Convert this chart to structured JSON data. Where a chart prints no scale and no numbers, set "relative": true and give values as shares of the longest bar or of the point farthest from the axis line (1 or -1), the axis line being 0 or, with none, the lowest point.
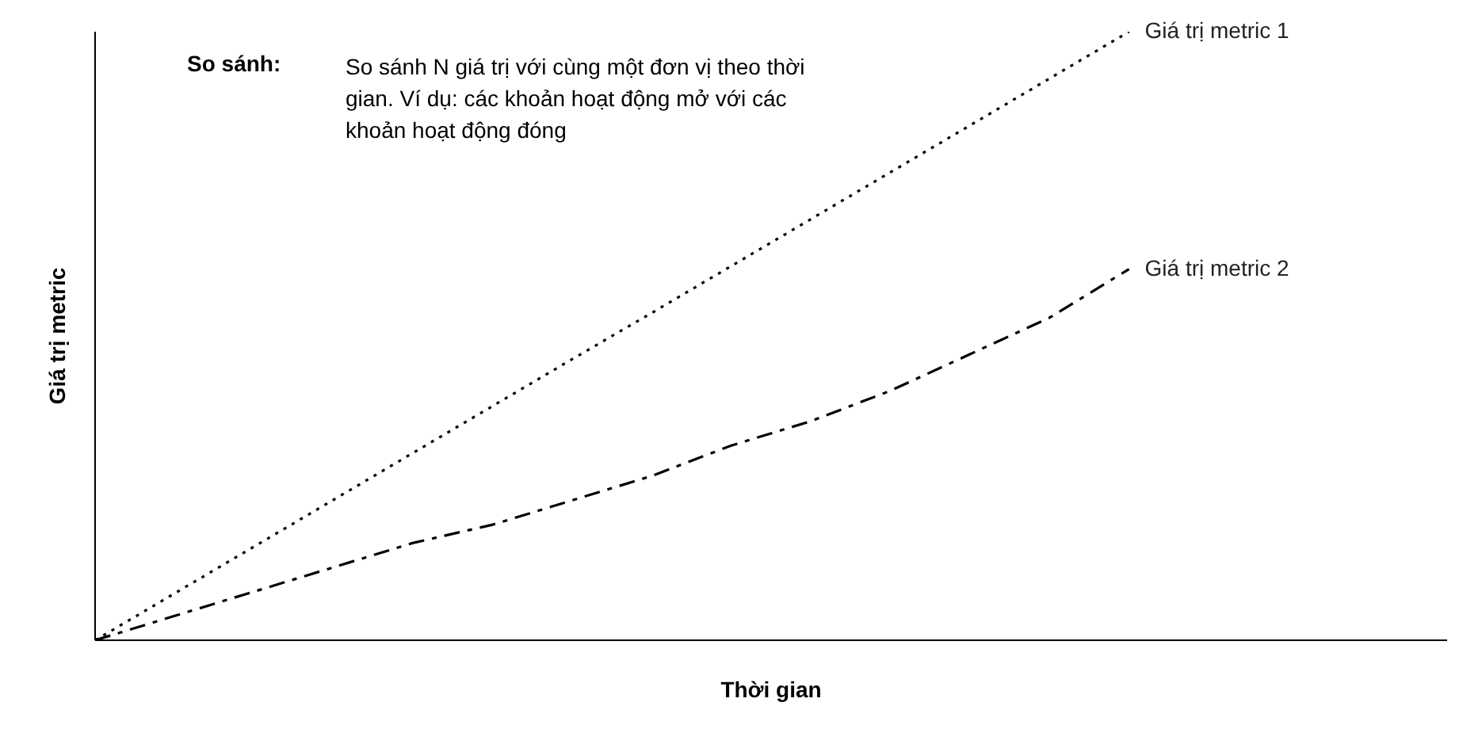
{
  "chart_data": {
    "type": "line",
    "relative": true,
    "xlabel": "Thời gian",
    "ylabel": "Giá trị metric",
    "annotations": [
      "So sánh:",
      "So sánh N giá trị với cùng một đơn vị theo thời gian.  Ví dụ: các khoản hoạt động mở với các khoản hoạt động đóng"
    ],
    "categories": [
      null,
      null,
      null,
      null,
      null,
      null,
      null,
      null,
      null,
      null,
      null,
      null,
      null,
      null,
      null,
      null,
      null,
      null
    ],
    "series": [
      {
        "name": "Giá trị metric 1",
        "color": "#000000",
        "line_style": "dotted",
        "values": [
          0,
          0.077,
          0.154,
          0.231,
          0.308,
          0.385,
          0.462,
          0.538,
          0.615,
          0.692,
          0.769,
          0.846,
          0.923,
          1,
          null,
          null,
          null,
          null
        ]
      },
      {
        "name": "Giá trị metric 2",
        "color": "#000000",
        "line_style": "dashed",
        "values": [
          0,
          0.04,
          0.08,
          0.12,
          0.16,
          0.19,
          0.23,
          0.27,
          0.32,
          0.36,
          0.41,
          0.47,
          0.53,
          0.61,
          null,
          null,
          null,
          null
        ]
      }
    ],
    "marker": "none"
  }
}
